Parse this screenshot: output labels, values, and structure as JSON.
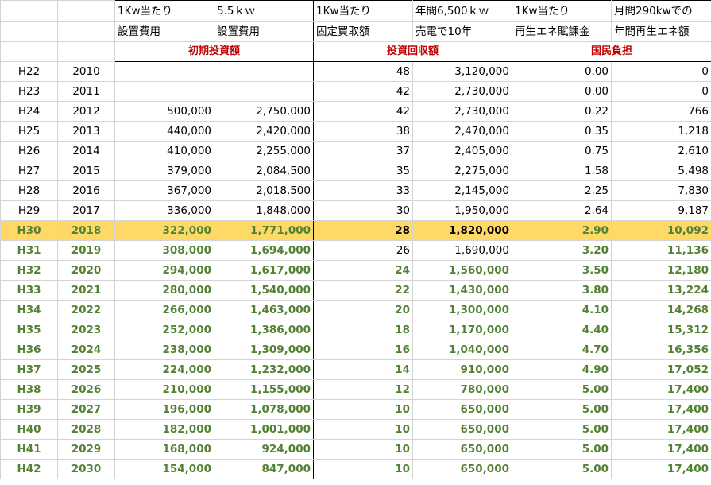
{
  "headers": {
    "row1": [
      "1Kw当たり",
      "5.5ｋｗ",
      "1Kw当たり",
      "年間6,500ｋｗ",
      "1Kw当たり",
      "月間290kwでの"
    ],
    "row2": [
      "設置費用",
      "設置費用",
      "固定買取額",
      "売電で10年",
      "再生エネ賦課金",
      "年間再生エネ額"
    ],
    "sections": [
      "初期投資額",
      "投資回収額",
      "国民負担"
    ]
  },
  "rows": [
    {
      "era": "H22",
      "year": "2010",
      "unit_cost": "",
      "total_cost": "",
      "fit_price": "48",
      "return10y": "3,120,000",
      "levy": "0.00",
      "annual_levy": "0"
    },
    {
      "era": "H23",
      "year": "2011",
      "unit_cost": "",
      "total_cost": "",
      "fit_price": "42",
      "return10y": "2,730,000",
      "levy": "0.00",
      "annual_levy": "0"
    },
    {
      "era": "H24",
      "year": "2012",
      "unit_cost": "500,000",
      "total_cost": "2,750,000",
      "fit_price": "42",
      "return10y": "2,730,000",
      "levy": "0.22",
      "annual_levy": "766"
    },
    {
      "era": "H25",
      "year": "2013",
      "unit_cost": "440,000",
      "total_cost": "2,420,000",
      "fit_price": "38",
      "return10y": "2,470,000",
      "levy": "0.35",
      "annual_levy": "1,218"
    },
    {
      "era": "H26",
      "year": "2014",
      "unit_cost": "410,000",
      "total_cost": "2,255,000",
      "fit_price": "37",
      "return10y": "2,405,000",
      "levy": "0.75",
      "annual_levy": "2,610"
    },
    {
      "era": "H27",
      "year": "2015",
      "unit_cost": "379,000",
      "total_cost": "2,084,500",
      "fit_price": "35",
      "return10y": "2,275,000",
      "levy": "1.58",
      "annual_levy": "5,498"
    },
    {
      "era": "H28",
      "year": "2016",
      "unit_cost": "367,000",
      "total_cost": "2,018,500",
      "fit_price": "33",
      "return10y": "2,145,000",
      "levy": "2.25",
      "annual_levy": "7,830"
    },
    {
      "era": "H29",
      "year": "2017",
      "unit_cost": "336,000",
      "total_cost": "1,848,000",
      "fit_price": "30",
      "return10y": "1,950,000",
      "levy": "2.64",
      "annual_levy": "9,187"
    },
    {
      "era": "H30",
      "year": "2018",
      "unit_cost": "322,000",
      "total_cost": "1,771,000",
      "fit_price": "28",
      "return10y": "1,820,000",
      "levy": "2.90",
      "annual_levy": "10,092"
    },
    {
      "era": "H31",
      "year": "2019",
      "unit_cost": "308,000",
      "total_cost": "1,694,000",
      "fit_price": "26",
      "return10y": "1,690,000",
      "levy": "3.20",
      "annual_levy": "11,136"
    },
    {
      "era": "H32",
      "year": "2020",
      "unit_cost": "294,000",
      "total_cost": "1,617,000",
      "fit_price": "24",
      "return10y": "1,560,000",
      "levy": "3.50",
      "annual_levy": "12,180"
    },
    {
      "era": "H33",
      "year": "2021",
      "unit_cost": "280,000",
      "total_cost": "1,540,000",
      "fit_price": "22",
      "return10y": "1,430,000",
      "levy": "3.80",
      "annual_levy": "13,224"
    },
    {
      "era": "H34",
      "year": "2022",
      "unit_cost": "266,000",
      "total_cost": "1,463,000",
      "fit_price": "20",
      "return10y": "1,300,000",
      "levy": "4.10",
      "annual_levy": "14,268"
    },
    {
      "era": "H35",
      "year": "2023",
      "unit_cost": "252,000",
      "total_cost": "1,386,000",
      "fit_price": "18",
      "return10y": "1,170,000",
      "levy": "4.40",
      "annual_levy": "15,312"
    },
    {
      "era": "H36",
      "year": "2024",
      "unit_cost": "238,000",
      "total_cost": "1,309,000",
      "fit_price": "16",
      "return10y": "1,040,000",
      "levy": "4.70",
      "annual_levy": "16,356"
    },
    {
      "era": "H37",
      "year": "2025",
      "unit_cost": "224,000",
      "total_cost": "1,232,000",
      "fit_price": "14",
      "return10y": "910,000",
      "levy": "4.90",
      "annual_levy": "17,052"
    },
    {
      "era": "H38",
      "year": "2026",
      "unit_cost": "210,000",
      "total_cost": "1,155,000",
      "fit_price": "12",
      "return10y": "780,000",
      "levy": "5.00",
      "annual_levy": "17,400"
    },
    {
      "era": "H39",
      "year": "2027",
      "unit_cost": "196,000",
      "total_cost": "1,078,000",
      "fit_price": "10",
      "return10y": "650,000",
      "levy": "5.00",
      "annual_levy": "17,400"
    },
    {
      "era": "H40",
      "year": "2028",
      "unit_cost": "182,000",
      "total_cost": "1,001,000",
      "fit_price": "10",
      "return10y": "650,000",
      "levy": "5.00",
      "annual_levy": "17,400"
    },
    {
      "era": "H41",
      "year": "2029",
      "unit_cost": "168,000",
      "total_cost": "924,000",
      "fit_price": "10",
      "return10y": "650,000",
      "levy": "5.00",
      "annual_levy": "17,400"
    },
    {
      "era": "H42",
      "year": "2030",
      "unit_cost": "154,000",
      "total_cost": "847,000",
      "fit_price": "10",
      "return10y": "650,000",
      "levy": "5.00",
      "annual_levy": "17,400"
    }
  ],
  "colors": {
    "highlight_row": "#ffd966",
    "projection_text": "#548235",
    "section_title": "#c00000"
  }
}
